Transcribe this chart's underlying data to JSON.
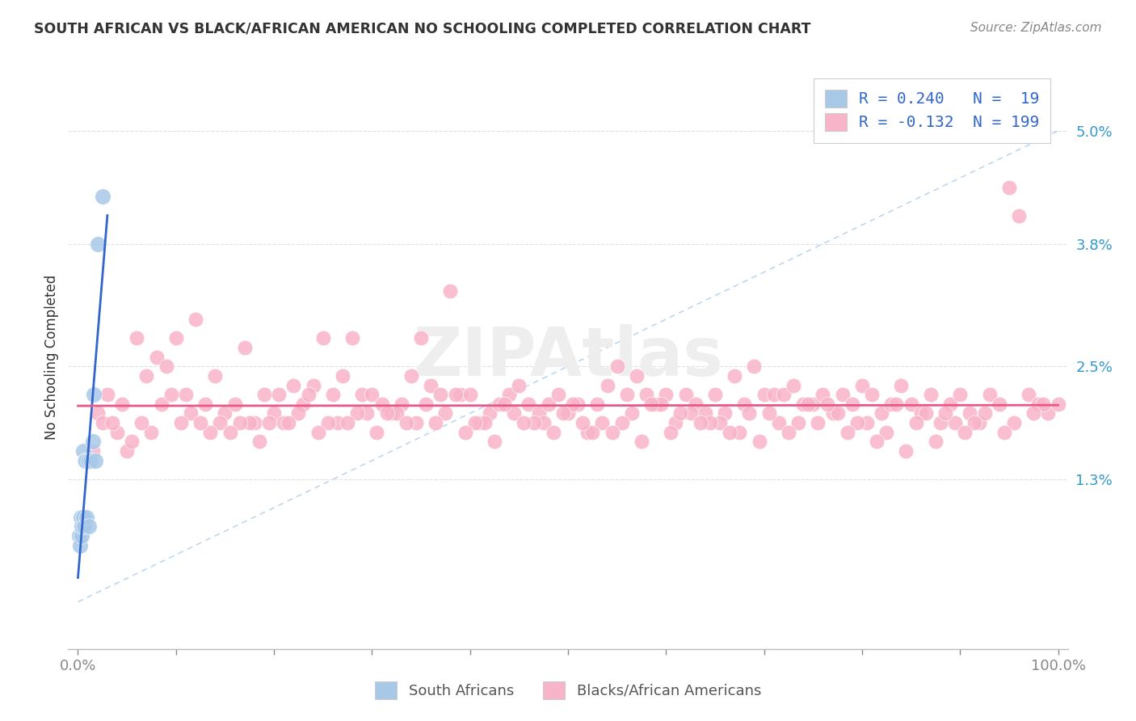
{
  "title": "SOUTH AFRICAN VS BLACK/AFRICAN AMERICAN NO SCHOOLING COMPLETED CORRELATION CHART",
  "source": "Source: ZipAtlas.com",
  "ylabel": "No Schooling Completed",
  "ytick_labels": [
    "1.3%",
    "2.5%",
    "3.8%",
    "5.0%"
  ],
  "ytick_values": [
    0.013,
    0.025,
    0.038,
    0.05
  ],
  "xlim": [
    -0.01,
    1.01
  ],
  "ylim": [
    -0.005,
    0.057
  ],
  "blue_color": "#a8c8e8",
  "pink_color": "#f8b4c8",
  "blue_line_color": "#3366cc",
  "pink_line_color": "#e85888",
  "diag_color": "#aaccee",
  "legend_text_color": "#3366cc",
  "bg_color": "#ffffff",
  "grid_color": "#e0e0e0",
  "watermark": "ZIPAtlas",
  "sa_x": [
    0.001,
    0.002,
    0.003,
    0.004,
    0.004,
    0.005,
    0.005,
    0.006,
    0.007,
    0.008,
    0.009,
    0.01,
    0.011,
    0.013,
    0.015,
    0.016,
    0.018,
    0.02,
    0.025
  ],
  "sa_y": [
    0.007,
    0.006,
    0.009,
    0.007,
    0.008,
    0.009,
    0.016,
    0.008,
    0.015,
    0.015,
    0.009,
    0.015,
    0.008,
    0.015,
    0.017,
    0.022,
    0.015,
    0.038,
    0.043
  ],
  "baa_x": [
    0.02,
    0.03,
    0.04,
    0.05,
    0.06,
    0.07,
    0.08,
    0.09,
    0.1,
    0.11,
    0.12,
    0.13,
    0.14,
    0.15,
    0.16,
    0.17,
    0.18,
    0.19,
    0.2,
    0.21,
    0.22,
    0.23,
    0.24,
    0.25,
    0.26,
    0.27,
    0.28,
    0.29,
    0.3,
    0.31,
    0.32,
    0.33,
    0.34,
    0.35,
    0.36,
    0.37,
    0.38,
    0.39,
    0.4,
    0.41,
    0.42,
    0.43,
    0.44,
    0.45,
    0.46,
    0.47,
    0.48,
    0.49,
    0.5,
    0.51,
    0.52,
    0.53,
    0.54,
    0.55,
    0.56,
    0.57,
    0.58,
    0.59,
    0.6,
    0.61,
    0.62,
    0.63,
    0.64,
    0.65,
    0.66,
    0.67,
    0.68,
    0.69,
    0.7,
    0.71,
    0.72,
    0.73,
    0.74,
    0.75,
    0.76,
    0.77,
    0.78,
    0.79,
    0.8,
    0.81,
    0.82,
    0.83,
    0.84,
    0.85,
    0.86,
    0.87,
    0.88,
    0.89,
    0.9,
    0.91,
    0.92,
    0.93,
    0.94,
    0.95,
    0.96,
    0.97,
    0.98,
    0.99,
    1.0,
    0.025,
    0.055,
    0.085,
    0.115,
    0.145,
    0.175,
    0.205,
    0.235,
    0.265,
    0.295,
    0.325,
    0.355,
    0.385,
    0.415,
    0.445,
    0.475,
    0.505,
    0.535,
    0.565,
    0.595,
    0.625,
    0.655,
    0.685,
    0.715,
    0.745,
    0.775,
    0.805,
    0.835,
    0.865,
    0.895,
    0.925,
    0.955,
    0.985,
    0.015,
    0.045,
    0.075,
    0.105,
    0.135,
    0.165,
    0.195,
    0.225,
    0.255,
    0.285,
    0.315,
    0.345,
    0.375,
    0.405,
    0.435,
    0.465,
    0.495,
    0.525,
    0.555,
    0.585,
    0.615,
    0.645,
    0.675,
    0.705,
    0.735,
    0.765,
    0.795,
    0.825,
    0.855,
    0.885,
    0.915,
    0.945,
    0.975,
    0.035,
    0.065,
    0.095,
    0.125,
    0.155,
    0.185,
    0.215,
    0.245,
    0.275,
    0.305,
    0.335,
    0.365,
    0.395,
    0.425,
    0.455,
    0.485,
    0.515,
    0.545,
    0.575,
    0.605,
    0.635,
    0.665,
    0.695,
    0.725,
    0.755,
    0.785,
    0.815,
    0.845,
    0.875,
    0.905
  ],
  "baa_y": [
    0.02,
    0.022,
    0.018,
    0.016,
    0.028,
    0.024,
    0.026,
    0.025,
    0.028,
    0.022,
    0.03,
    0.021,
    0.024,
    0.02,
    0.021,
    0.027,
    0.019,
    0.022,
    0.02,
    0.019,
    0.023,
    0.021,
    0.023,
    0.028,
    0.022,
    0.024,
    0.028,
    0.022,
    0.022,
    0.021,
    0.02,
    0.021,
    0.024,
    0.028,
    0.023,
    0.022,
    0.033,
    0.022,
    0.022,
    0.019,
    0.02,
    0.021,
    0.022,
    0.023,
    0.021,
    0.02,
    0.021,
    0.022,
    0.02,
    0.021,
    0.018,
    0.021,
    0.023,
    0.025,
    0.022,
    0.024,
    0.022,
    0.021,
    0.022,
    0.019,
    0.022,
    0.021,
    0.02,
    0.022,
    0.02,
    0.024,
    0.021,
    0.025,
    0.022,
    0.022,
    0.022,
    0.023,
    0.021,
    0.021,
    0.022,
    0.02,
    0.022,
    0.021,
    0.023,
    0.022,
    0.02,
    0.021,
    0.023,
    0.021,
    0.02,
    0.022,
    0.019,
    0.021,
    0.022,
    0.02,
    0.019,
    0.022,
    0.021,
    0.044,
    0.041,
    0.022,
    0.021,
    0.02,
    0.021,
    0.019,
    0.017,
    0.021,
    0.02,
    0.019,
    0.019,
    0.022,
    0.022,
    0.019,
    0.02,
    0.02,
    0.021,
    0.022,
    0.019,
    0.02,
    0.019,
    0.021,
    0.019,
    0.02,
    0.021,
    0.02,
    0.019,
    0.02,
    0.019,
    0.021,
    0.02,
    0.019,
    0.021,
    0.02,
    0.019,
    0.02,
    0.019,
    0.021,
    0.016,
    0.021,
    0.018,
    0.019,
    0.018,
    0.019,
    0.019,
    0.02,
    0.019,
    0.02,
    0.02,
    0.019,
    0.02,
    0.019,
    0.021,
    0.019,
    0.02,
    0.018,
    0.019,
    0.021,
    0.02,
    0.019,
    0.018,
    0.02,
    0.019,
    0.021,
    0.019,
    0.018,
    0.019,
    0.02,
    0.019,
    0.018,
    0.02,
    0.019,
    0.019,
    0.022,
    0.019,
    0.018,
    0.017,
    0.019,
    0.018,
    0.019,
    0.018,
    0.019,
    0.019,
    0.018,
    0.017,
    0.019,
    0.018,
    0.019,
    0.018,
    0.017,
    0.018,
    0.019,
    0.018,
    0.017,
    0.018,
    0.019,
    0.018,
    0.017,
    0.016,
    0.017,
    0.018
  ]
}
